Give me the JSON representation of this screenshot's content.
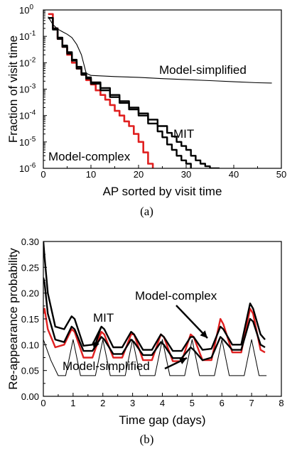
{
  "chart_data": [
    {
      "type": "line",
      "caption": "(a)",
      "xlabel": "AP sorted by visit time",
      "ylabel": "Fraction of visit time",
      "xlim": [
        0,
        50
      ],
      "ylim": [
        1e-06,
        1
      ],
      "yscale": "log",
      "xticks": [
        "0",
        "10",
        "20",
        "30",
        "40",
        "50"
      ],
      "yticks": [
        "10",
        "10",
        "10",
        "10",
        "10",
        "10",
        "10"
      ],
      "ytick_exponents": [
        "0",
        "-1",
        "-2",
        "-3",
        "-4",
        "-5",
        "-6"
      ],
      "annotations": [
        {
          "text": "Model-simplified",
          "target_x": 41,
          "target_y": 0.0018
        },
        {
          "text": "MIT",
          "target_x": 28,
          "target_y": 1e-05
        },
        {
          "text": "Model-complex",
          "target_x": 21,
          "target_y": 2e-06
        }
      ],
      "series": [
        {
          "color": "#e02020",
          "width": 2.6,
          "kind": "step",
          "x": [
            1,
            2,
            3,
            4,
            5,
            6,
            7,
            8,
            9,
            10,
            11,
            12,
            13,
            14,
            15,
            16,
            17,
            18,
            19,
            20,
            21,
            22,
            23
          ],
          "y": [
            0.7,
            0.2,
            0.08,
            0.04,
            0.02,
            0.01,
            0.006,
            0.0035,
            0.0022,
            0.0015,
            0.0009,
            0.0006,
            0.0004,
            0.00025,
            0.00015,
            0.0001,
            6e-05,
            4e-05,
            2e-05,
            1e-05,
            4e-06,
            1.5e-06,
            1e-06
          ]
        },
        {
          "color": "#000000",
          "width": 2.4,
          "kind": "step",
          "x": [
            1,
            2,
            3,
            4,
            5,
            6,
            7,
            8,
            9,
            10,
            12,
            14,
            16,
            18,
            20,
            22,
            24,
            26,
            27,
            28,
            29,
            30,
            31,
            32,
            33,
            34,
            35,
            37
          ],
          "y": [
            0.5,
            0.2,
            0.09,
            0.045,
            0.025,
            0.013,
            0.007,
            0.004,
            0.0028,
            0.0018,
            0.0011,
            0.0006,
            0.00035,
            0.0002,
            0.00012,
            7e-05,
            4e-05,
            2.2e-05,
            1.6e-05,
            1e-05,
            7e-06,
            5e-06,
            3e-06,
            2e-06,
            1.5e-06,
            1.2e-06,
            1e-06,
            1e-06
          ]
        },
        {
          "color": "#000000",
          "width": 2.4,
          "kind": "step",
          "x": [
            1,
            2,
            3,
            4,
            5,
            6,
            7,
            8,
            9,
            10,
            12,
            14,
            16,
            18,
            20,
            22,
            24,
            25,
            26,
            27,
            28,
            29,
            30,
            31
          ],
          "y": [
            0.5,
            0.18,
            0.08,
            0.04,
            0.022,
            0.012,
            0.006,
            0.0035,
            0.0025,
            0.0016,
            0.0009,
            0.0005,
            0.0003,
            0.00017,
            0.0001,
            5e-05,
            2.5e-05,
            1.5e-05,
            8e-06,
            5e-06,
            3e-06,
            2e-06,
            1.5e-06,
            1e-06
          ]
        },
        {
          "color": "#000000",
          "width": 1.1,
          "kind": "line",
          "x": [
            1,
            2,
            3,
            4,
            5,
            6,
            7,
            8,
            9,
            10,
            15,
            20,
            25,
            30,
            35,
            40,
            45,
            48
          ],
          "y": [
            0.55,
            0.28,
            0.19,
            0.15,
            0.12,
            0.09,
            0.05,
            0.02,
            0.004,
            0.0033,
            0.003,
            0.0028,
            0.0025,
            0.0023,
            0.0021,
            0.0019,
            0.00175,
            0.0017
          ]
        }
      ]
    },
    {
      "type": "line",
      "caption": "(b)",
      "xlabel": "Time gap (days)",
      "ylabel": "Re-appearance probability",
      "xlim": [
        0,
        8
      ],
      "ylim": [
        0,
        0.3
      ],
      "xticks": [
        "0",
        "1",
        "2",
        "3",
        "4",
        "5",
        "6",
        "7",
        "8"
      ],
      "yticks": [
        "0.00",
        "0.05",
        "0.10",
        "0.15",
        "0.20",
        "0.25",
        "0.30"
      ],
      "annotations": [
        {
          "text": "Model-complex",
          "target_x": 6.0,
          "target_y": 0.125
        },
        {
          "text": "MIT",
          "target_x": 1.2,
          "target_y": 0.12
        },
        {
          "text": "Model-simplified",
          "target_x": 5.6,
          "target_y": 0.045
        }
      ],
      "series": [
        {
          "color": "#e02020",
          "width": 2.4,
          "x": [
            0.0,
            0.04,
            0.15,
            0.4,
            0.7,
            0.95,
            1.05,
            1.35,
            1.65,
            1.95,
            2.05,
            2.35,
            2.65,
            2.95,
            3.05,
            3.35,
            3.65,
            3.95,
            4.05,
            4.35,
            4.65,
            4.95,
            5.05,
            5.35,
            5.65,
            5.95,
            6.05,
            6.35,
            6.65,
            6.95,
            7.05,
            7.3,
            7.45
          ],
          "y": [
            0.16,
            0.17,
            0.13,
            0.095,
            0.1,
            0.13,
            0.125,
            0.075,
            0.075,
            0.125,
            0.12,
            0.075,
            0.075,
            0.12,
            0.12,
            0.07,
            0.07,
            0.12,
            0.115,
            0.068,
            0.068,
            0.12,
            0.115,
            0.07,
            0.07,
            0.15,
            0.14,
            0.085,
            0.085,
            0.17,
            0.16,
            0.09,
            0.085
          ]
        },
        {
          "color": "#000000",
          "width": 2.4,
          "x": [
            0.0,
            0.04,
            0.15,
            0.4,
            0.7,
            0.95,
            1.05,
            1.35,
            1.65,
            1.95,
            2.05,
            2.35,
            2.65,
            2.95,
            3.05,
            3.35,
            3.65,
            3.95,
            4.05,
            4.35,
            4.65,
            4.95,
            5.05,
            5.35,
            5.65,
            5.95,
            6.05,
            6.35,
            6.65,
            6.95,
            7.05,
            7.3,
            7.45
          ],
          "y": [
            0.3,
            0.27,
            0.2,
            0.135,
            0.13,
            0.155,
            0.15,
            0.098,
            0.1,
            0.135,
            0.13,
            0.095,
            0.095,
            0.125,
            0.12,
            0.09,
            0.09,
            0.12,
            0.115,
            0.088,
            0.088,
            0.115,
            0.115,
            0.09,
            0.092,
            0.135,
            0.13,
            0.1,
            0.1,
            0.18,
            0.17,
            0.12,
            0.11
          ]
        },
        {
          "color": "#000000",
          "width": 2.4,
          "x": [
            0.0,
            0.04,
            0.15,
            0.4,
            0.7,
            0.95,
            1.05,
            1.35,
            1.65,
            1.95,
            2.05,
            2.35,
            2.65,
            2.95,
            3.05,
            3.35,
            3.65,
            3.95,
            4.05,
            4.35,
            4.65,
            4.95,
            5.05,
            5.35,
            5.65,
            5.95,
            6.05,
            6.35,
            6.65,
            6.95,
            7.05,
            7.3,
            7.45
          ],
          "y": [
            0.23,
            0.22,
            0.16,
            0.11,
            0.105,
            0.135,
            0.13,
            0.088,
            0.088,
            0.115,
            0.11,
            0.082,
            0.082,
            0.11,
            0.105,
            0.08,
            0.08,
            0.105,
            0.1,
            0.074,
            0.074,
            0.095,
            0.09,
            0.07,
            0.075,
            0.115,
            0.11,
            0.09,
            0.09,
            0.15,
            0.145,
            0.1,
            0.095
          ]
        },
        {
          "color": "#000000",
          "width": 1.0,
          "x": [
            0.0,
            0.25,
            0.5,
            0.75,
            1.0,
            1.25,
            1.5,
            1.75,
            2.0,
            2.25,
            2.5,
            2.75,
            3.0,
            3.25,
            3.5,
            3.75,
            4.0,
            4.25,
            4.5,
            4.75,
            5.0,
            5.25,
            5.5,
            5.75,
            6.0,
            6.25,
            6.5,
            6.75,
            7.0,
            7.25,
            7.5
          ],
          "y": [
            0.11,
            0.07,
            0.04,
            0.04,
            0.11,
            0.04,
            0.04,
            0.04,
            0.11,
            0.04,
            0.04,
            0.04,
            0.11,
            0.04,
            0.04,
            0.04,
            0.11,
            0.04,
            0.04,
            0.04,
            0.11,
            0.04,
            0.04,
            0.04,
            0.11,
            0.04,
            0.04,
            0.04,
            0.11,
            0.04,
            0.04
          ]
        }
      ]
    }
  ]
}
